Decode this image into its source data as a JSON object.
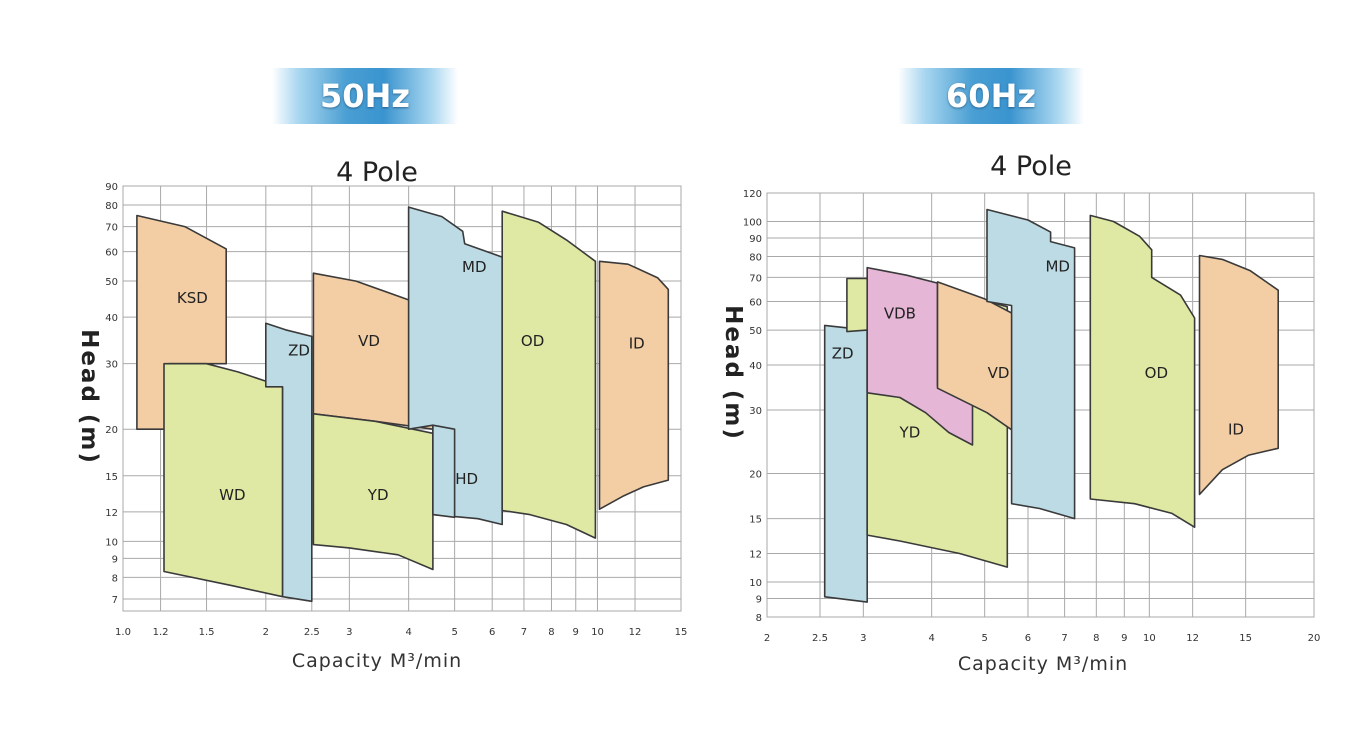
{
  "badges": {
    "left": "50Hz",
    "right": "60Hz"
  },
  "colors": {
    "orange": "#f3cea5",
    "green": "#dfe9a3",
    "blue": "#bcdbe5",
    "pink": "#e6b6d6",
    "stroke": "#3a3a3a",
    "grid": "#a9a9a9"
  },
  "chart_data": [
    {
      "type": "area",
      "title": "4 Pole",
      "xlabel": "Capacity M³/min",
      "ylabel": "Head (m)",
      "x_scale": "log",
      "y_scale": "log",
      "xlim": [
        1.0,
        15
      ],
      "ylim": [
        6.5,
        90
      ],
      "x_ticks": [
        1.0,
        1.2,
        1.5,
        2,
        2.5,
        3,
        4,
        5,
        6,
        7,
        8,
        9,
        10,
        12,
        15
      ],
      "x_tick_labels": [
        "1.0",
        "1.2",
        "1.5",
        "2",
        "2.5",
        "3",
        "4",
        "5",
        "6",
        "7",
        "8",
        "9",
        "10",
        "12",
        "15"
      ],
      "y_ticks": [
        7,
        8,
        9,
        10,
        12,
        15,
        20,
        30,
        40,
        50,
        60,
        70,
        80,
        90
      ],
      "y_tick_labels": [
        "7",
        "8",
        "9",
        "10",
        "12",
        "15",
        "20",
        "30",
        "40",
        "50",
        "60",
        "70",
        "80",
        "90"
      ],
      "regions": [
        {
          "name": "KSD",
          "color": "orange",
          "label_at": [
            1.4,
            45
          ],
          "points": [
            [
              1.07,
              20
            ],
            [
              1.07,
              75
            ],
            [
              1.35,
              70
            ],
            [
              1.65,
              61
            ],
            [
              1.65,
              30
            ],
            [
              1.25,
              30
            ],
            [
              1.25,
              20
            ]
          ]
        },
        {
          "name": "WD",
          "color": "green",
          "label_at": [
            1.7,
            13.3
          ],
          "points": [
            [
              1.22,
              30
            ],
            [
              1.5,
              30
            ],
            [
              1.75,
              28.5
            ],
            [
              2.17,
              26
            ],
            [
              2.17,
              7.1
            ],
            [
              1.7,
              7.6
            ],
            [
              1.22,
              8.3
            ]
          ]
        },
        {
          "name": "ZD",
          "color": "blue",
          "label_at": [
            2.35,
            32.5
          ],
          "points": [
            [
              2.0,
              38.5
            ],
            [
              2.2,
              37
            ],
            [
              2.5,
              35.5
            ],
            [
              2.5,
              6.9
            ],
            [
              2.17,
              7.1
            ],
            [
              2.17,
              26
            ],
            [
              2.0,
              26
            ]
          ]
        },
        {
          "name": "VD",
          "color": "orange",
          "label_at": [
            3.3,
            34.5
          ],
          "points": [
            [
              2.52,
              52.5
            ],
            [
              3.1,
              50
            ],
            [
              4.0,
              44.5
            ],
            [
              5.7,
              36
            ],
            [
              5.7,
              18.8
            ],
            [
              4.5,
              20
            ],
            [
              3.4,
              21
            ],
            [
              2.52,
              22
            ]
          ]
        },
        {
          "name": "YD",
          "color": "green",
          "label_at": [
            3.45,
            13.3
          ],
          "points": [
            [
              2.52,
              22
            ],
            [
              3.4,
              21
            ],
            [
              4.5,
              19.5
            ],
            [
              4.5,
              8.4
            ],
            [
              3.8,
              9.2
            ],
            [
              3.0,
              9.6
            ],
            [
              2.52,
              9.8
            ]
          ]
        },
        {
          "name": "MD",
          "color": "blue",
          "label_at": [
            5.5,
            54.5
          ],
          "points": [
            [
              4.0,
              79
            ],
            [
              4.7,
              74.5
            ],
            [
              5.2,
              68
            ],
            [
              5.25,
              63
            ],
            [
              6.3,
              58
            ],
            [
              6.3,
              11.1
            ],
            [
              5.6,
              11.5
            ],
            [
              4.5,
              11.8
            ],
            [
              4.5,
              20.5
            ],
            [
              4.0,
              20
            ]
          ]
        },
        {
          "name": "HD",
          "color": "blue",
          "label_at": [
            5.3,
            14.7
          ],
          "points": [
            [
              4.5,
              20.5
            ],
            [
              5.0,
              20
            ],
            [
              5.0,
              11.6
            ],
            [
              4.5,
              11.8
            ]
          ]
        },
        {
          "name": "OD",
          "color": "green",
          "label_at": [
            7.3,
            34.5
          ],
          "points": [
            [
              6.3,
              77
            ],
            [
              7.5,
              72
            ],
            [
              8.6,
              64.5
            ],
            [
              9.9,
              56.5
            ],
            [
              9.9,
              10.2
            ],
            [
              8.6,
              11.1
            ],
            [
              7.2,
              11.8
            ],
            [
              6.3,
              12.1
            ]
          ]
        },
        {
          "name": "ID",
          "color": "orange",
          "label_at": [
            12.1,
            34
          ],
          "points": [
            [
              10.1,
              56.5
            ],
            [
              11.6,
              55.5
            ],
            [
              13.4,
              51
            ],
            [
              14.1,
              47.5
            ],
            [
              14.1,
              14.6
            ],
            [
              12.5,
              14
            ],
            [
              11.3,
              13.2
            ],
            [
              10.1,
              12.2
            ]
          ]
        }
      ]
    },
    {
      "type": "area",
      "title": "4 Pole",
      "xlabel": "Capacity M³/min",
      "ylabel": "Head (m)",
      "x_scale": "log",
      "y_scale": "log",
      "xlim": [
        2,
        20
      ],
      "ylim": [
        8,
        120
      ],
      "x_ticks": [
        2,
        2.5,
        3,
        4,
        5,
        6,
        7,
        8,
        9,
        10,
        12,
        15,
        20
      ],
      "x_tick_labels": [
        "2",
        "2.5",
        "3",
        "4",
        "5",
        "6",
        "7",
        "8",
        "9",
        "10",
        "12",
        "15",
        "20"
      ],
      "y_ticks": [
        8,
        9,
        10,
        12,
        15,
        20,
        30,
        40,
        50,
        60,
        70,
        80,
        90,
        100,
        120
      ],
      "y_tick_labels": [
        "8",
        "9",
        "10",
        "12",
        "15",
        "20",
        "30",
        "40",
        "50",
        "60",
        "70",
        "80",
        "90",
        "100",
        "120"
      ],
      "regions": [
        {
          "name": "ZD",
          "color": "blue",
          "label_at": [
            2.75,
            43
          ],
          "points": [
            [
              2.55,
              51.5
            ],
            [
              3.05,
              50
            ],
            [
              3.05,
              8.8
            ],
            [
              2.55,
              9.1
            ]
          ]
        },
        {
          "name": "YD",
          "color": "green",
          "label_at": [
            3.65,
            26
          ],
          "points": [
            [
              2.8,
              69.5
            ],
            [
              3.05,
              69.5
            ],
            [
              3.05,
              69
            ],
            [
              3.9,
              68.5
            ],
            [
              5.0,
              60.5
            ],
            [
              5.5,
              58
            ],
            [
              5.5,
              11
            ],
            [
              4.5,
              12
            ],
            [
              3.5,
              13
            ],
            [
              3.05,
              13.5
            ],
            [
              3.05,
              50
            ],
            [
              2.8,
              49.5
            ]
          ]
        },
        {
          "name": "VDB",
          "color": "pink",
          "label_at": [
            3.5,
            55.5
          ],
          "points": [
            [
              3.05,
              74.5
            ],
            [
              3.6,
              71
            ],
            [
              4.1,
              67.5
            ],
            [
              4.1,
              35
            ],
            [
              4.75,
              31.5
            ],
            [
              4.75,
              24
            ],
            [
              4.3,
              26
            ],
            [
              3.9,
              29.5
            ],
            [
              3.5,
              32.5
            ],
            [
              3.05,
              33.5
            ]
          ]
        },
        {
          "name": "VD",
          "color": "orange",
          "label_at": [
            5.3,
            38
          ],
          "points": [
            [
              4.1,
              68
            ],
            [
              5.0,
              61
            ],
            [
              5.9,
              53.5
            ],
            [
              6.6,
              45
            ],
            [
              6.6,
              22
            ],
            [
              5.8,
              25.5
            ],
            [
              5.05,
              29.5
            ],
            [
              4.1,
              34.5
            ]
          ]
        },
        {
          "name": "MD",
          "color": "blue",
          "label_at": [
            6.8,
            75
          ],
          "points": [
            [
              5.05,
              108
            ],
            [
              6.0,
              101
            ],
            [
              6.6,
              93.5
            ],
            [
              6.6,
              88
            ],
            [
              7.3,
              84.5
            ],
            [
              7.3,
              15
            ],
            [
              6.3,
              16
            ],
            [
              5.6,
              16.5
            ],
            [
              5.6,
              58.5
            ],
            [
              5.05,
              60
            ]
          ]
        },
        {
          "name": "OD",
          "color": "green",
          "label_at": [
            10.3,
            38
          ],
          "points": [
            [
              7.8,
              104
            ],
            [
              8.6,
              100
            ],
            [
              9.6,
              91
            ],
            [
              10.1,
              83.5
            ],
            [
              10.1,
              70
            ],
            [
              11.4,
              62.5
            ],
            [
              12.1,
              54
            ],
            [
              12.1,
              14.2
            ],
            [
              11.0,
              15.5
            ],
            [
              9.4,
              16.5
            ],
            [
              7.8,
              17
            ]
          ]
        },
        {
          "name": "ID",
          "color": "orange",
          "label_at": [
            14.4,
            26.5
          ],
          "points": [
            [
              12.35,
              80.5
            ],
            [
              13.6,
              78.5
            ],
            [
              15.3,
              73
            ],
            [
              17.2,
              64.5
            ],
            [
              17.2,
              23.5
            ],
            [
              15.2,
              22.5
            ],
            [
              13.6,
              20.5
            ],
            [
              12.35,
              17.5
            ]
          ]
        }
      ]
    }
  ]
}
